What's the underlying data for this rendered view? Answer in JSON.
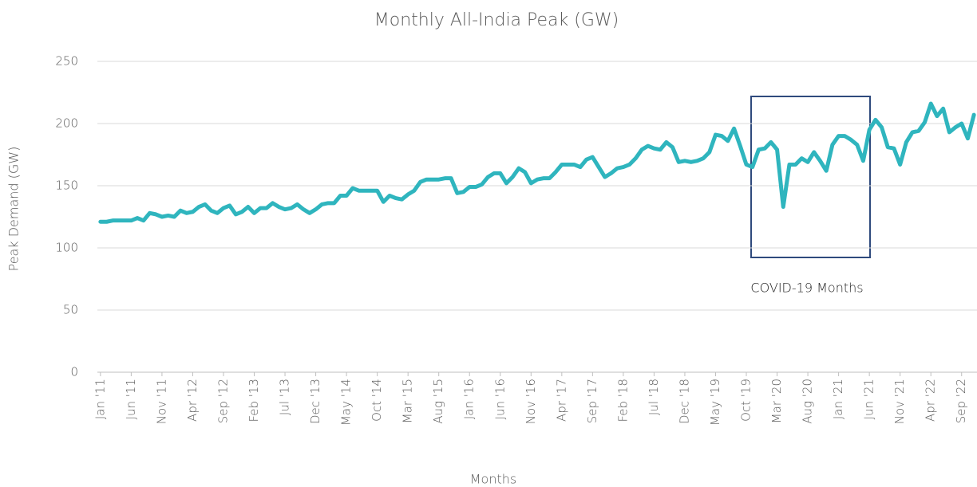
{
  "chart_data": {
    "type": "line",
    "title": "Monthly All-India Peak (GW)",
    "x_label": "Months",
    "y_label": "Peak Demand (GW)",
    "annotation": "COVID-19 Months",
    "color": "#2fb5be",
    "grid": true,
    "ylim": [
      0,
      250
    ],
    "yticks": [
      0,
      50,
      100,
      150,
      200,
      250
    ],
    "categories": [
      "Jan '11",
      null,
      null,
      null,
      null,
      "Jun '11",
      null,
      null,
      null,
      null,
      "Nov '11",
      null,
      null,
      null,
      null,
      "Apr '12",
      null,
      null,
      null,
      null,
      "Sep '12",
      null,
      null,
      null,
      null,
      "Feb '13",
      null,
      null,
      null,
      null,
      "Jul '13",
      null,
      null,
      null,
      null,
      "Dec '13",
      null,
      null,
      null,
      null,
      "May '14",
      null,
      null,
      null,
      null,
      "Oct '14",
      null,
      null,
      null,
      null,
      "Mar '15",
      null,
      null,
      null,
      null,
      "Aug '15",
      null,
      null,
      null,
      null,
      "Jan '16",
      null,
      null,
      null,
      null,
      "Jun '16",
      null,
      null,
      null,
      null,
      "Nov '16",
      null,
      null,
      null,
      null,
      "Apr '17",
      null,
      null,
      null,
      null,
      "Sep '17",
      null,
      null,
      null,
      null,
      "Feb '18",
      null,
      null,
      null,
      null,
      "Jul '18",
      null,
      null,
      null,
      null,
      "Dec '18",
      null,
      null,
      null,
      null,
      "May '19",
      null,
      null,
      null,
      null,
      "Oct '19",
      null,
      null,
      null,
      null,
      "Mar '20",
      null,
      null,
      null,
      null,
      "Aug '20",
      null,
      null,
      null,
      null,
      "Jan '21",
      null,
      null,
      null,
      null,
      "Jun '21",
      null,
      null,
      null,
      null,
      "Nov '21",
      null,
      null,
      null,
      null,
      "Apr '22",
      null,
      null,
      null,
      null,
      "Sep '22",
      null,
      null
    ],
    "values": [
      121,
      121,
      122,
      122,
      122,
      122,
      124,
      122,
      128,
      127,
      125,
      126,
      125,
      130,
      128,
      129,
      133,
      135,
      130,
      128,
      132,
      134,
      127,
      129,
      133,
      128,
      132,
      132,
      136,
      133,
      131,
      132,
      135,
      131,
      128,
      131,
      135,
      136,
      136,
      142,
      142,
      148,
      146,
      146,
      146,
      146,
      137,
      142,
      140,
      139,
      143,
      146,
      153,
      155,
      155,
      155,
      156,
      156,
      144,
      145,
      149,
      149,
      151,
      157,
      160,
      160,
      152,
      157,
      164,
      161,
      152,
      155,
      156,
      156,
      161,
      167,
      167,
      167,
      165,
      171,
      173,
      165,
      157,
      160,
      164,
      165,
      167,
      172,
      179,
      182,
      180,
      179,
      185,
      181,
      169,
      170,
      169,
      170,
      172,
      177,
      191,
      190,
      186,
      196,
      182,
      167,
      165,
      179,
      180,
      185,
      179,
      133,
      167,
      167,
      172,
      169,
      177,
      170,
      162,
      183,
      190,
      190,
      187,
      183,
      170,
      195,
      203,
      197,
      181,
      180,
      167,
      185,
      193,
      194,
      201,
      216,
      206,
      212,
      193,
      197,
      200,
      188,
      207
    ]
  }
}
